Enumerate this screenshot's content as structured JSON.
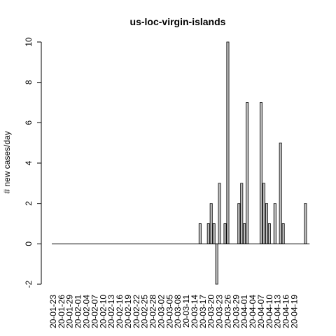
{
  "chart_data": {
    "type": "bar",
    "title": "us-loc-virgin-islands",
    "xlabel": "",
    "ylabel": "# new cases/day",
    "ylim": [
      -2,
      10
    ],
    "yticks": [
      -2,
      0,
      2,
      4,
      6,
      8,
      10
    ],
    "grid": false,
    "legend": "none",
    "start_date": "2020-01-23",
    "x_tick_labels": [
      "20-01-23",
      "20-01-26",
      "20-01-29",
      "20-02-01",
      "20-02-04",
      "20-02-07",
      "20-02-10",
      "20-02-13",
      "20-02-16",
      "20-02-19",
      "20-02-22",
      "20-02-25",
      "20-02-28",
      "20-03-02",
      "20-03-05",
      "20-03-08",
      "20-03-11",
      "20-03-14",
      "20-03-17",
      "20-03-20",
      "20-03-23",
      "20-03-26",
      "20-03-29",
      "20-04-01",
      "20-04-04",
      "20-04-07",
      "20-04-10",
      "20-04-13",
      "20-04-16",
      "20-04-19"
    ],
    "values": [
      0,
      0,
      0,
      0,
      0,
      0,
      0,
      0,
      0,
      0,
      0,
      0,
      0,
      0,
      0,
      0,
      0,
      0,
      0,
      0,
      0,
      0,
      0,
      0,
      0,
      0,
      0,
      0,
      0,
      0,
      0,
      0,
      0,
      0,
      0,
      0,
      0,
      0,
      0,
      0,
      0,
      0,
      0,
      0,
      0,
      0,
      0,
      0,
      0,
      0,
      0,
      0,
      0,
      1,
      0,
      0,
      1,
      2,
      1,
      -2,
      3,
      0,
      1,
      10,
      0,
      0,
      0,
      2,
      3,
      1,
      7,
      0,
      0,
      0,
      0,
      7,
      3,
      2,
      1,
      0,
      2,
      0,
      5,
      1,
      0,
      0,
      0,
      0,
      0,
      0,
      0,
      2,
      0
    ],
    "colors": {
      "bar_fill": "#bebebe",
      "bar_stroke": "#000000"
    }
  }
}
